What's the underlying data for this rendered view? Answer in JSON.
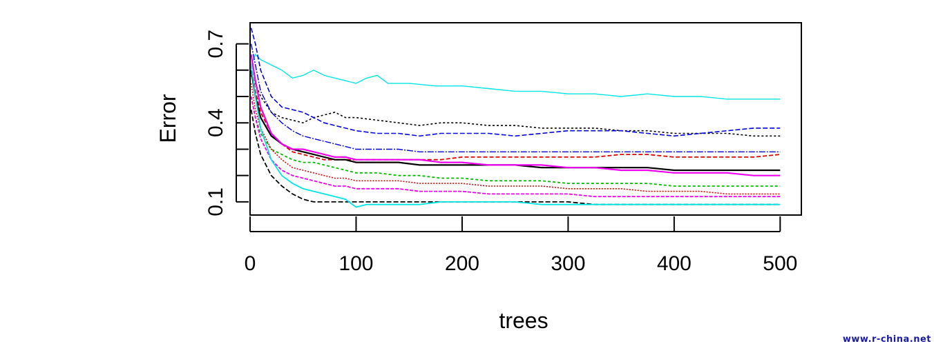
{
  "chart_data": {
    "type": "line",
    "title": "",
    "xlabel": "trees",
    "ylabel": "Error",
    "xlim": [
      0,
      520
    ],
    "ylim": [
      0.05,
      0.78
    ],
    "xticks": [
      0,
      100,
      200,
      300,
      400,
      500
    ],
    "yticks": [
      0.1,
      0.4,
      0.7
    ],
    "yminor": [
      0.2,
      0.3,
      0.5,
      0.6
    ],
    "grid": false,
    "legend": "none",
    "series": [
      {
        "color": "#00e5e5",
        "dash": "solid",
        "width": 1.4,
        "x": [
          1,
          5,
          10,
          20,
          30,
          40,
          50,
          60,
          70,
          80,
          90,
          100,
          110,
          120,
          130,
          150,
          175,
          200,
          225,
          250,
          275,
          300,
          325,
          350,
          375,
          400,
          425,
          450,
          475,
          500
        ],
        "y": [
          0.62,
          0.66,
          0.64,
          0.62,
          0.6,
          0.57,
          0.58,
          0.6,
          0.58,
          0.57,
          0.56,
          0.55,
          0.57,
          0.58,
          0.55,
          0.55,
          0.54,
          0.54,
          0.53,
          0.52,
          0.52,
          0.51,
          0.51,
          0.5,
          0.51,
          0.5,
          0.5,
          0.49,
          0.49,
          0.49
        ]
      },
      {
        "color": "#000000",
        "dash": "3,3",
        "width": 1.6,
        "x": [
          1,
          5,
          10,
          20,
          30,
          40,
          50,
          60,
          70,
          80,
          90,
          100,
          120,
          140,
          160,
          180,
          200,
          225,
          250,
          275,
          300,
          325,
          350,
          375,
          400,
          425,
          450,
          475,
          500
        ],
        "y": [
          0.58,
          0.55,
          0.5,
          0.44,
          0.42,
          0.41,
          0.4,
          0.42,
          0.43,
          0.44,
          0.42,
          0.42,
          0.41,
          0.4,
          0.39,
          0.4,
          0.4,
          0.39,
          0.39,
          0.38,
          0.38,
          0.38,
          0.37,
          0.37,
          0.36,
          0.36,
          0.36,
          0.35,
          0.35
        ]
      },
      {
        "color": "#0000dd",
        "dash": "7,3",
        "width": 1.6,
        "x": [
          1,
          5,
          10,
          20,
          30,
          40,
          50,
          60,
          70,
          80,
          90,
          100,
          120,
          140,
          160,
          180,
          200,
          225,
          250,
          275,
          300,
          325,
          350,
          375,
          400,
          425,
          450,
          475,
          500
        ],
        "y": [
          0.76,
          0.7,
          0.6,
          0.5,
          0.46,
          0.45,
          0.44,
          0.42,
          0.4,
          0.39,
          0.38,
          0.37,
          0.36,
          0.36,
          0.35,
          0.36,
          0.36,
          0.36,
          0.35,
          0.36,
          0.37,
          0.37,
          0.37,
          0.36,
          0.35,
          0.36,
          0.37,
          0.38,
          0.38
        ]
      },
      {
        "color": "#0000dd",
        "dash": "9,2,2,2",
        "width": 1.4,
        "x": [
          1,
          5,
          10,
          20,
          30,
          40,
          50,
          60,
          70,
          80,
          90,
          100,
          120,
          140,
          160,
          180,
          200,
          225,
          250,
          275,
          300,
          325,
          350,
          375,
          400,
          425,
          450,
          475,
          500
        ],
        "y": [
          0.7,
          0.62,
          0.52,
          0.44,
          0.4,
          0.37,
          0.35,
          0.34,
          0.33,
          0.32,
          0.31,
          0.3,
          0.3,
          0.3,
          0.29,
          0.29,
          0.29,
          0.29,
          0.29,
          0.29,
          0.29,
          0.29,
          0.29,
          0.29,
          0.29,
          0.29,
          0.29,
          0.29,
          0.29
        ]
      },
      {
        "color": "#dd0000",
        "dash": "6,3",
        "width": 1.8,
        "x": [
          1,
          5,
          10,
          20,
          30,
          40,
          50,
          60,
          70,
          80,
          90,
          100,
          120,
          140,
          160,
          180,
          200,
          225,
          250,
          275,
          300,
          325,
          350,
          375,
          400,
          425,
          450,
          475,
          500
        ],
        "y": [
          0.62,
          0.52,
          0.44,
          0.36,
          0.32,
          0.29,
          0.28,
          0.27,
          0.26,
          0.26,
          0.26,
          0.26,
          0.26,
          0.26,
          0.26,
          0.26,
          0.27,
          0.27,
          0.27,
          0.27,
          0.27,
          0.27,
          0.28,
          0.28,
          0.27,
          0.27,
          0.27,
          0.27,
          0.28
        ]
      },
      {
        "color": "#000000",
        "dash": "solid",
        "width": 2.2,
        "x": [
          1,
          5,
          10,
          20,
          30,
          40,
          50,
          60,
          70,
          80,
          90,
          100,
          120,
          140,
          160,
          180,
          200,
          225,
          250,
          275,
          300,
          325,
          350,
          375,
          400,
          425,
          450,
          475,
          500
        ],
        "y": [
          0.6,
          0.5,
          0.42,
          0.35,
          0.32,
          0.3,
          0.29,
          0.28,
          0.27,
          0.26,
          0.26,
          0.25,
          0.25,
          0.25,
          0.24,
          0.24,
          0.24,
          0.24,
          0.24,
          0.23,
          0.23,
          0.23,
          0.23,
          0.23,
          0.22,
          0.22,
          0.22,
          0.22,
          0.22
        ]
      },
      {
        "color": "#ee00ee",
        "dash": "solid",
        "width": 2.2,
        "x": [
          1,
          5,
          10,
          20,
          30,
          40,
          50,
          60,
          70,
          80,
          90,
          100,
          120,
          140,
          160,
          180,
          200,
          225,
          250,
          275,
          300,
          325,
          350,
          375,
          400,
          425,
          450,
          475,
          500
        ],
        "y": [
          0.66,
          0.56,
          0.46,
          0.36,
          0.32,
          0.3,
          0.3,
          0.29,
          0.28,
          0.27,
          0.27,
          0.26,
          0.26,
          0.26,
          0.26,
          0.25,
          0.25,
          0.24,
          0.24,
          0.24,
          0.23,
          0.23,
          0.22,
          0.22,
          0.21,
          0.21,
          0.21,
          0.2,
          0.2
        ]
      },
      {
        "color": "#00bb00",
        "dash": "4,3",
        "width": 1.8,
        "x": [
          1,
          5,
          10,
          20,
          30,
          40,
          50,
          60,
          70,
          80,
          90,
          100,
          120,
          140,
          160,
          180,
          200,
          225,
          250,
          275,
          300,
          325,
          350,
          375,
          400,
          425,
          450,
          475,
          500
        ],
        "y": [
          0.5,
          0.42,
          0.36,
          0.3,
          0.28,
          0.26,
          0.25,
          0.25,
          0.24,
          0.23,
          0.22,
          0.21,
          0.21,
          0.2,
          0.2,
          0.19,
          0.19,
          0.18,
          0.18,
          0.18,
          0.17,
          0.17,
          0.17,
          0.17,
          0.16,
          0.16,
          0.16,
          0.16,
          0.16
        ]
      },
      {
        "color": "#dd0000",
        "dash": "2,2",
        "width": 1.6,
        "x": [
          1,
          5,
          10,
          20,
          30,
          40,
          50,
          60,
          70,
          80,
          90,
          100,
          120,
          140,
          160,
          180,
          200,
          225,
          250,
          275,
          300,
          325,
          350,
          375,
          400,
          425,
          450,
          475,
          500
        ],
        "y": [
          0.55,
          0.45,
          0.38,
          0.3,
          0.26,
          0.23,
          0.22,
          0.21,
          0.2,
          0.19,
          0.19,
          0.18,
          0.18,
          0.18,
          0.17,
          0.17,
          0.17,
          0.16,
          0.16,
          0.16,
          0.15,
          0.15,
          0.15,
          0.14,
          0.14,
          0.14,
          0.13,
          0.13,
          0.13
        ]
      },
      {
        "color": "#ee00ee",
        "dash": "5,2",
        "width": 1.8,
        "x": [
          1,
          5,
          10,
          20,
          30,
          40,
          50,
          60,
          70,
          80,
          90,
          100,
          120,
          140,
          160,
          180,
          200,
          225,
          250,
          275,
          300,
          325,
          350,
          375,
          400,
          425,
          450,
          475,
          500
        ],
        "y": [
          0.5,
          0.42,
          0.34,
          0.26,
          0.22,
          0.2,
          0.19,
          0.18,
          0.17,
          0.16,
          0.16,
          0.15,
          0.15,
          0.15,
          0.14,
          0.14,
          0.14,
          0.13,
          0.13,
          0.13,
          0.13,
          0.12,
          0.12,
          0.12,
          0.12,
          0.12,
          0.12,
          0.12,
          0.12
        ]
      },
      {
        "color": "#000000",
        "dash": "7,3",
        "width": 1.8,
        "x": [
          1,
          5,
          10,
          20,
          30,
          40,
          50,
          60,
          70,
          80,
          90,
          100,
          120,
          140,
          160,
          180,
          200,
          225,
          250,
          275,
          300,
          325,
          350,
          375,
          400,
          425,
          450,
          475,
          500
        ],
        "y": [
          0.45,
          0.36,
          0.28,
          0.2,
          0.16,
          0.13,
          0.11,
          0.1,
          0.1,
          0.1,
          0.1,
          0.1,
          0.1,
          0.1,
          0.1,
          0.1,
          0.1,
          0.1,
          0.1,
          0.1,
          0.1,
          0.09,
          0.09,
          0.09,
          0.09,
          0.09,
          0.09,
          0.09,
          0.09
        ]
      },
      {
        "color": "#00e5e5",
        "dash": "solid",
        "width": 1.8,
        "x": [
          1,
          5,
          10,
          20,
          30,
          40,
          50,
          60,
          70,
          80,
          90,
          100,
          110,
          120,
          140,
          160,
          180,
          200,
          225,
          250,
          275,
          300,
          325,
          350,
          375,
          400,
          425,
          450,
          475,
          500
        ],
        "y": [
          0.62,
          0.5,
          0.38,
          0.26,
          0.2,
          0.17,
          0.15,
          0.14,
          0.13,
          0.12,
          0.11,
          0.08,
          0.09,
          0.09,
          0.09,
          0.09,
          0.1,
          0.1,
          0.1,
          0.1,
          0.09,
          0.09,
          0.09,
          0.09,
          0.09,
          0.09,
          0.09,
          0.09,
          0.09,
          0.09
        ]
      }
    ]
  },
  "watermark": "www.r-china.net"
}
